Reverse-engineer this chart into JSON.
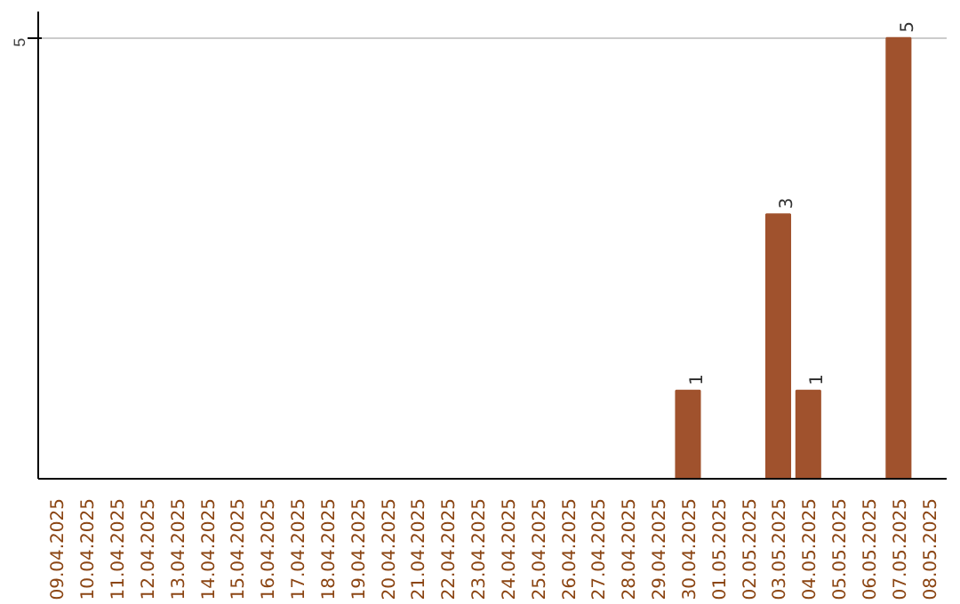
{
  "chart_data": {
    "type": "bar",
    "categories": [
      "09.04.2025",
      "10.04.2025",
      "11.04.2025",
      "12.04.2025",
      "13.04.2025",
      "14.04.2025",
      "15.04.2025",
      "16.04.2025",
      "17.04.2025",
      "18.04.2025",
      "19.04.2025",
      "20.04.2025",
      "21.04.2025",
      "22.04.2025",
      "23.04.2025",
      "24.04.2025",
      "25.04.2025",
      "26.04.2025",
      "27.04.2025",
      "28.04.2025",
      "29.04.2025",
      "30.04.2025",
      "01.05.2025",
      "02.05.2025",
      "03.05.2025",
      "04.05.2025",
      "05.05.2025",
      "06.05.2025",
      "07.05.2025",
      "08.05.2025"
    ],
    "values": [
      null,
      null,
      null,
      null,
      null,
      null,
      null,
      null,
      null,
      null,
      null,
      null,
      null,
      null,
      null,
      null,
      null,
      null,
      null,
      null,
      null,
      1,
      null,
      null,
      3,
      1,
      null,
      null,
      5,
      null
    ],
    "color": "#a0522d",
    "ylim": [
      0,
      5.3
    ],
    "yticks": [
      5
    ],
    "grid": "y",
    "data_labels": true
  }
}
